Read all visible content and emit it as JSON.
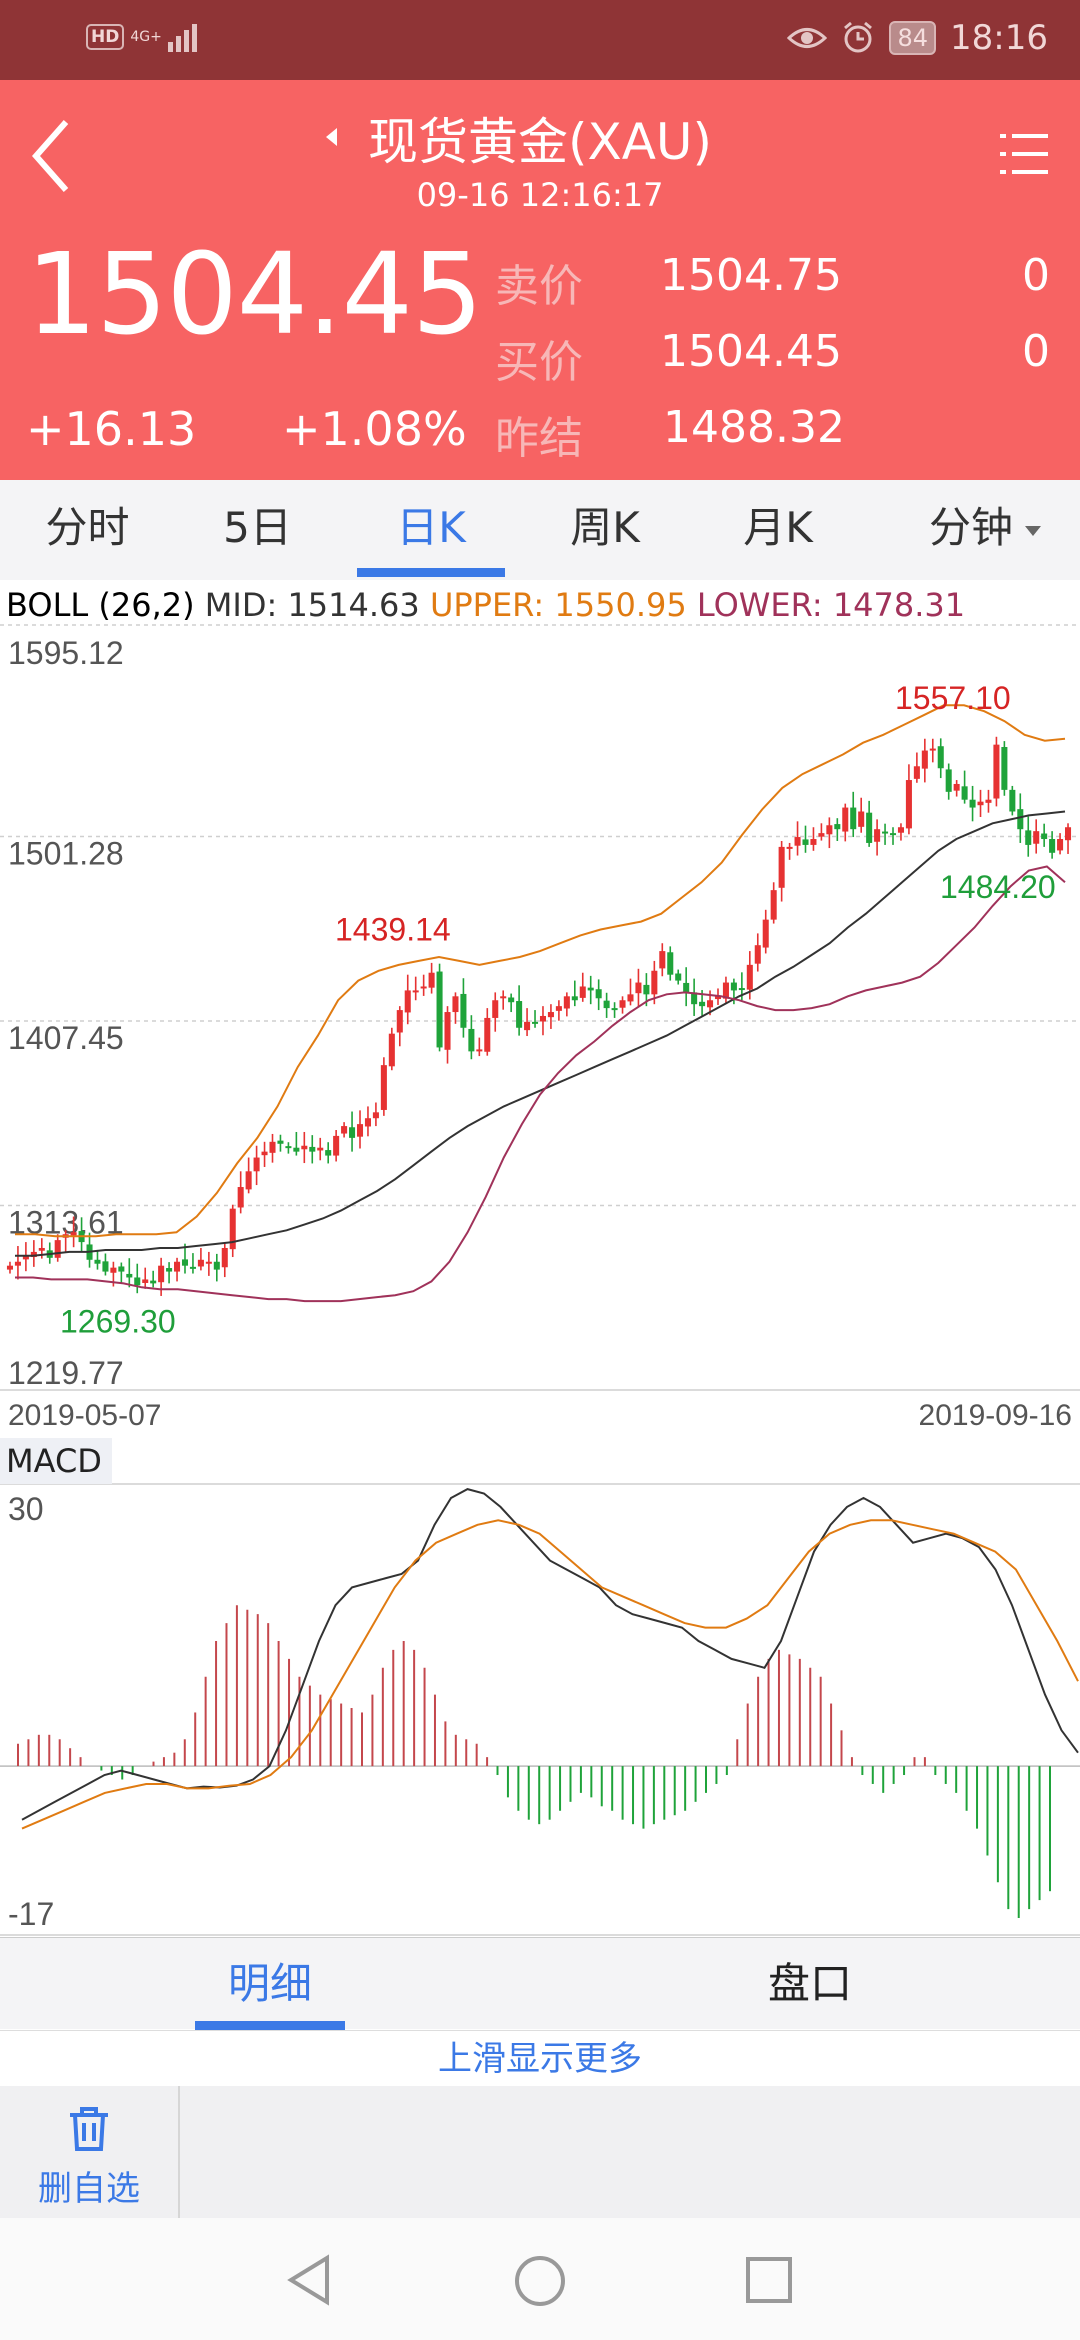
{
  "status_bar": {
    "hd": "HD",
    "network": "4G+",
    "battery": "84",
    "time": "18:16"
  },
  "header": {
    "title": "现货黄金(XAU)",
    "timestamp": "09-16  12:16:17",
    "price": "1504.45",
    "change": "+16.13",
    "change_pct": "+1.08%",
    "quotes": [
      {
        "label": "卖价",
        "value": "1504.75",
        "volume": "0"
      },
      {
        "label": "买价",
        "value": "1504.45",
        "volume": "0"
      },
      {
        "label": "昨结",
        "value": "1488.32",
        "volume": ""
      }
    ],
    "bg_color": "#f76363"
  },
  "period_tabs": {
    "items": [
      "分时",
      "5日",
      "日K",
      "周K",
      "月K",
      "分钟"
    ],
    "active": "日K"
  },
  "boll": {
    "name": "BOLL",
    "params": "(26,2)",
    "mid": "MID: 1514.63",
    "upper": "UPPER: 1550.95",
    "lower": "LOWER: 1478.31",
    "colors": {
      "mid": "#333333",
      "upper": "#e07b12",
      "lower": "#a0325a"
    }
  },
  "chart_data": [
    {
      "type": "candlestick",
      "title": "",
      "indicator": "BOLL(26,2)",
      "y_ticks": [
        "1595.12",
        "1501.28",
        "1407.45",
        "1313.61",
        "1219.77"
      ],
      "ylim": [
        1219.77,
        1595.12
      ],
      "x_labels": [
        "2019-05-07",
        "2019-09-16"
      ],
      "annotations": [
        {
          "label": "1439.14",
          "kind": "local high",
          "color": "#d62424"
        },
        {
          "label": "1557.10",
          "kind": "max high",
          "color": "#d62424"
        },
        {
          "label": "1269.30",
          "kind": "min low",
          "color": "#1f9e3a"
        },
        {
          "label": "1484.20",
          "kind": "recent low",
          "color": "#1f9e3a"
        }
      ],
      "close_series": [
        1283,
        1285,
        1288,
        1290,
        1292,
        1287,
        1296,
        1299,
        1300,
        1295,
        1286,
        1284,
        1280,
        1282,
        1280,
        1277,
        1273,
        1276,
        1274,
        1283,
        1280,
        1285,
        1283,
        1282,
        1286,
        1285,
        1281,
        1292,
        1312,
        1323,
        1331,
        1338,
        1341,
        1346,
        1345,
        1343,
        1341,
        1344,
        1341,
        1343,
        1339,
        1349,
        1354,
        1348,
        1355,
        1358,
        1361,
        1385,
        1401,
        1413,
        1423,
        1423,
        1425,
        1432,
        1394,
        1412,
        1420,
        1404,
        1392,
        1393,
        1409,
        1418,
        1420,
        1417,
        1404,
        1407,
        1406,
        1410,
        1412,
        1415,
        1420,
        1418,
        1425,
        1423,
        1419,
        1414,
        1413,
        1418,
        1421,
        1427,
        1421,
        1433,
        1443,
        1431,
        1428,
        1422,
        1416,
        1415,
        1418,
        1420,
        1427,
        1423,
        1424,
        1436,
        1446,
        1459,
        1474,
        1496,
        1496,
        1501,
        1497,
        1500,
        1503,
        1507,
        1505,
        1516,
        1505,
        1514,
        1498,
        1505,
        1503,
        1502,
        1506,
        1530,
        1537,
        1545,
        1546,
        1536,
        1524,
        1528,
        1520,
        1516,
        1519,
        1520,
        1548,
        1525,
        1514,
        1505,
        1497,
        1504,
        1500,
        1493,
        1500,
        1506
      ],
      "series": [
        {
          "name": "MID",
          "values": [
            1288,
            1288,
            1289,
            1290,
            1290,
            1291,
            1291,
            1291,
            1292,
            1292,
            1293,
            1294,
            1295,
            1297,
            1299,
            1301,
            1304,
            1307,
            1311,
            1316,
            1321,
            1327,
            1334,
            1341,
            1348,
            1354,
            1359,
            1364,
            1368,
            1372,
            1376,
            1380,
            1384,
            1388,
            1392,
            1396,
            1400,
            1405,
            1410,
            1415,
            1420,
            1424,
            1430,
            1435,
            1441,
            1447,
            1455,
            1462,
            1470,
            1478,
            1486,
            1494,
            1500,
            1504,
            1508,
            1510,
            1512,
            1513,
            1514
          ]
        },
        {
          "name": "UPPER",
          "values": [
            1299,
            1299,
            1298,
            1298,
            1298,
            1299,
            1299,
            1299,
            1300,
            1308,
            1320,
            1335,
            1348,
            1364,
            1384,
            1400,
            1418,
            1428,
            1433,
            1436,
            1438,
            1440,
            1438,
            1436,
            1438,
            1440,
            1443,
            1447,
            1451,
            1454,
            1456,
            1458,
            1462,
            1470,
            1478,
            1488,
            1502,
            1515,
            1526,
            1533,
            1538,
            1543,
            1549,
            1553,
            1558,
            1563,
            1568,
            1568,
            1565,
            1560,
            1553,
            1550,
            1551
          ]
        },
        {
          "name": "LOWER",
          "values": [
            1277,
            1277,
            1276,
            1276,
            1276,
            1275,
            1274,
            1272,
            1271,
            1271,
            1270,
            1269,
            1268,
            1267,
            1266,
            1266,
            1265,
            1265,
            1265,
            1266,
            1267,
            1268,
            1270,
            1275,
            1285,
            1300,
            1318,
            1338,
            1355,
            1370,
            1381,
            1390,
            1397,
            1405,
            1412,
            1418,
            1421,
            1422,
            1421,
            1420,
            1418,
            1415,
            1413,
            1413,
            1414,
            1416,
            1420,
            1423,
            1425,
            1427,
            1430,
            1437,
            1446,
            1455,
            1466,
            1476,
            1484,
            1486,
            1478
          ]
        }
      ]
    },
    {
      "type": "line",
      "title": "",
      "indicator": "MACD",
      "y_ticks": [
        "30",
        "-17"
      ],
      "ylim": [
        -17,
        30
      ],
      "series": [
        {
          "name": "DIF",
          "color": "#333333",
          "values": [
            -6,
            -5,
            -4,
            -3,
            -2,
            -1,
            -0.5,
            -1,
            -1.5,
            -2,
            -2.5,
            -2.3,
            -2.4,
            -2.2,
            -1.5,
            0,
            4,
            9,
            14,
            18,
            20,
            20.5,
            21,
            21.5,
            23,
            27,
            30,
            31,
            30.5,
            29,
            27,
            25,
            23,
            22,
            21,
            20,
            18,
            17,
            16.5,
            16,
            15.5,
            14,
            13,
            12,
            11.5,
            11,
            14,
            19,
            24,
            27,
            29,
            30,
            29,
            27,
            25,
            25.5,
            26,
            25.5,
            24.5,
            22,
            18,
            13,
            8,
            4,
            1.5
          ]
        },
        {
          "name": "DEA",
          "color": "#e07b12",
          "values": [
            -7,
            -6,
            -5,
            -4,
            -3,
            -2.5,
            -2,
            -2,
            -2.5,
            -2.5,
            -2.2,
            -2,
            -1,
            1,
            4,
            8,
            12,
            16,
            20,
            23,
            25,
            26,
            27,
            27.5,
            27,
            26,
            24,
            22,
            20,
            19,
            18,
            17,
            16,
            15.5,
            15.5,
            16.5,
            18,
            21,
            24,
            26,
            27,
            27.5,
            27.5,
            27,
            26.5,
            26,
            25,
            24,
            22,
            18,
            14,
            9.5
          ]
        },
        {
          "name": "MACD",
          "type": "bar",
          "values": [
            2.5,
            3,
            3.5,
            3.5,
            3,
            2,
            1,
            0,
            -0.5,
            -1,
            -1.5,
            -1,
            0,
            0.5,
            1,
            1.5,
            3,
            6,
            10,
            14,
            16,
            18,
            17.5,
            17,
            16,
            14,
            12,
            10,
            9,
            8,
            7.5,
            7,
            6.5,
            6,
            8,
            11,
            13,
            14,
            13,
            11,
            8,
            5,
            3.5,
            3,
            2.5,
            1,
            -1,
            -3.5,
            -5,
            -6,
            -6.5,
            -6,
            -5,
            -4,
            -3,
            -3.5,
            -4.5,
            -5,
            -6,
            -6.5,
            -7,
            -6.5,
            -6,
            -5.5,
            -5,
            -4,
            -3,
            -2,
            -1,
            3,
            7,
            10,
            12,
            13,
            12.5,
            12,
            11,
            10,
            7,
            4,
            1,
            -1,
            -2,
            -3,
            -2,
            -1,
            1,
            1,
            -1,
            -2,
            -3,
            -5,
            -7,
            -10,
            -13,
            -16,
            -17,
            -16,
            -15,
            -14
          ]
        }
      ]
    }
  ],
  "macd_label": "MACD",
  "detail_tabs": {
    "items": [
      "明细",
      "盘口"
    ],
    "active": "明细"
  },
  "more_hint": "上滑显示更多",
  "bottom_action": {
    "label": "删自选",
    "icon": "trash-icon"
  },
  "colors": {
    "rise": "#e63232",
    "fall": "#1fa33a",
    "accent": "#3b79e6"
  }
}
